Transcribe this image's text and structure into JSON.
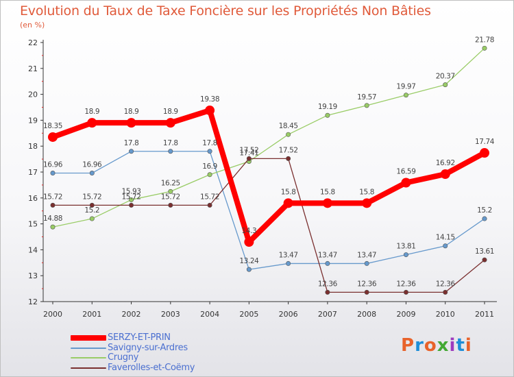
{
  "header": {
    "title": "Evolution du Taux de Taxe Foncière sur les Propriétés Non Bâties",
    "unit": "(en %)"
  },
  "logo": {
    "text": "Proxiti",
    "letter_colors": [
      "#e8622a",
      "#1e8ed8",
      "#e8622a",
      "#43a833",
      "#9d3bbf",
      "#1e8ed8",
      "#e8622a"
    ]
  },
  "chart_data": {
    "type": "line",
    "title": "Evolution du Taux de Taxe Foncière sur les Propriétés Non Bâties",
    "ylabel": "(en %)",
    "xlabel": "",
    "ylim": [
      12,
      22
    ],
    "yticks": [
      "12",
      "13",
      "14",
      "15",
      "16",
      "17",
      "18",
      "19",
      "20",
      "21",
      "22"
    ],
    "categories": [
      "2000",
      "2001",
      "2002",
      "2003",
      "2004",
      "2005",
      "2006",
      "2007",
      "2008",
      "2009",
      "2010",
      "2011"
    ],
    "series": [
      {
        "name": "SERZY-ET-PRIN",
        "color": "#ff0000",
        "emphasis": true,
        "values": [
          18.35,
          18.9,
          18.9,
          18.9,
          19.38,
          14.3,
          15.8,
          15.8,
          15.8,
          16.59,
          16.92,
          17.74
        ],
        "labels": [
          "18.35",
          "18.9",
          "18.9",
          "18.9",
          "19.38",
          "14.3",
          "15.8",
          "15.8",
          "15.8",
          "16.59",
          "16.92",
          "17.74"
        ]
      },
      {
        "name": "Savigny-sur-Ardres",
        "color": "#6699cc",
        "values": [
          16.96,
          16.96,
          17.8,
          17.8,
          17.8,
          13.24,
          13.47,
          13.47,
          13.47,
          13.81,
          14.15,
          15.2
        ],
        "labels": [
          "16.96",
          "16.96",
          "17.8",
          "17.8",
          "17.8",
          "13.24",
          "13.47",
          "13.47",
          "13.47",
          "13.81",
          "14.15",
          "15.2"
        ]
      },
      {
        "name": "Crugny",
        "color": "#99cc66",
        "values": [
          14.88,
          15.2,
          15.93,
          16.25,
          16.9,
          17.41,
          18.45,
          19.19,
          19.57,
          19.97,
          20.37,
          21.78
        ],
        "labels": [
          "14.88",
          "15.2",
          "15.93",
          "16.25",
          "16.9",
          "17.41",
          "18.45",
          "19.19",
          "19.57",
          "19.97",
          "20.37",
          "21.78"
        ]
      },
      {
        "name": "Faverolles-et-Coëmy",
        "color": "#7a2f2f",
        "values": [
          15.72,
          15.72,
          15.72,
          15.72,
          15.72,
          17.52,
          17.52,
          12.36,
          12.36,
          12.36,
          12.36,
          13.61
        ],
        "labels": [
          "15.72",
          "15.72",
          "15.72",
          "15.72",
          "15.72",
          "17.52",
          "17.52",
          "12.36",
          "12.36",
          "12.36",
          "12.36",
          "13.61"
        ]
      }
    ],
    "legend": "bottom-left"
  }
}
